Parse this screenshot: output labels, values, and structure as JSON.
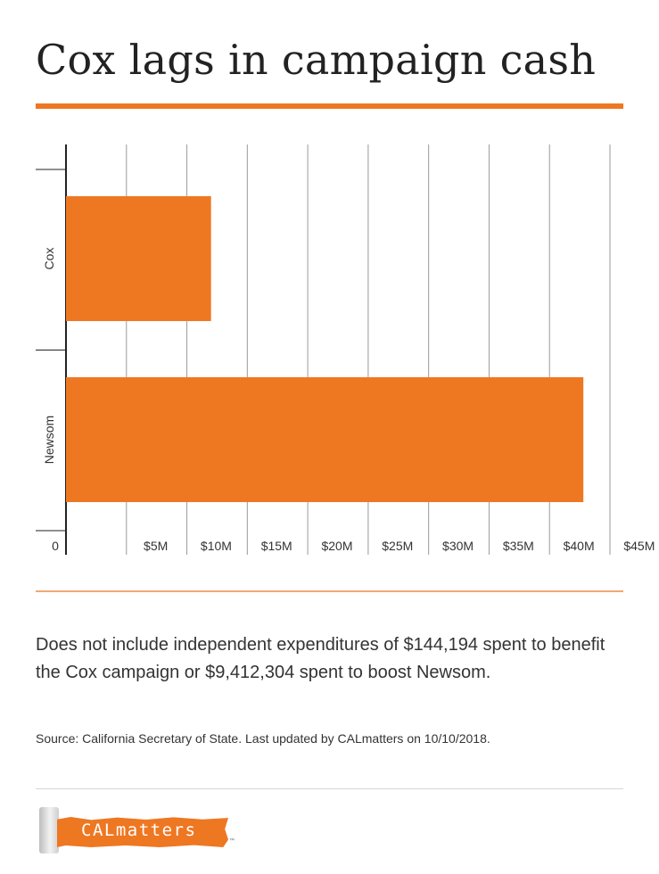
{
  "header": {
    "title": "Cox lags in campaign cash"
  },
  "chart_data": {
    "type": "bar",
    "orientation": "horizontal",
    "title": "Cox lags in campaign cash",
    "categories": [
      "Cox",
      "Newsom"
    ],
    "values": [
      12000000,
      42800000
    ],
    "xlim": [
      0,
      45000000
    ],
    "x_tick_values": [
      0,
      5000000,
      10000000,
      15000000,
      20000000,
      25000000,
      30000000,
      35000000,
      40000000,
      45000000
    ],
    "x_tick_labels": [
      "0",
      "$5M",
      "$10M",
      "$15M",
      "$20M",
      "$25M",
      "$30M",
      "$35M",
      "$40M",
      "$45M"
    ],
    "xlabel": "",
    "ylabel": "",
    "grid": true,
    "bar_color": "#EE7722",
    "grid_color": "#9a9a9a",
    "axis_color": "#222222"
  },
  "footer": {
    "note": "Does not include independent expenditures of $144,194 spent to benefit the Cox campaign or $9,412,304 spent to boost Newsom.",
    "source": "Source: California Secretary of State. Last updated by CALmatters on 10/10/2018.",
    "logo_text": "CALmatters",
    "logo_tm": "™"
  },
  "colors": {
    "accent": "#EE7722",
    "text": "#333333"
  }
}
